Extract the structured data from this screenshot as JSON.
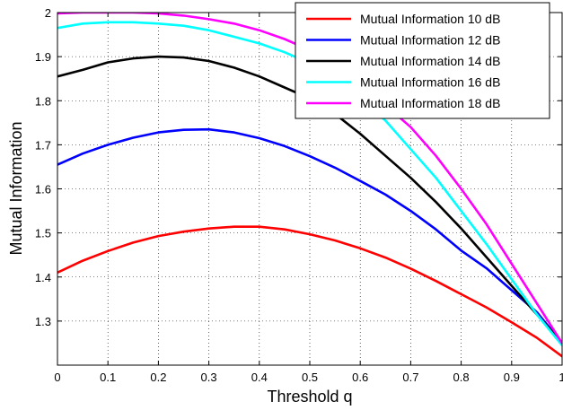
{
  "chart_data": {
    "type": "line",
    "title": "",
    "xlabel": "Threshold q",
    "ylabel": "Mutual Information",
    "xlim": [
      0,
      1
    ],
    "ylim": [
      1.2,
      2.0
    ],
    "xticks": [
      0,
      0.1,
      0.2,
      0.3,
      0.4,
      0.5,
      0.6,
      0.7,
      0.8,
      0.9,
      1
    ],
    "xtick_labels": [
      "0",
      "0.1",
      "0.2",
      "0.3",
      "0.4",
      "0.5",
      "0.6",
      "0.7",
      "0.8",
      "0.9",
      "1"
    ],
    "yticks": [
      1.3,
      1.4,
      1.5,
      1.6,
      1.7,
      1.8,
      1.9,
      2
    ],
    "ytick_labels": [
      "1.3",
      "1.4",
      "1.5",
      "1.6",
      "1.7",
      "1.8",
      "1.9",
      "2"
    ],
    "grid": true,
    "legend_position": "top-right",
    "x": [
      0,
      0.05,
      0.1,
      0.15,
      0.2,
      0.25,
      0.3,
      0.35,
      0.4,
      0.45,
      0.5,
      0.55,
      0.6,
      0.65,
      0.7,
      0.75,
      0.8,
      0.85,
      0.9,
      0.95,
      1
    ],
    "series": [
      {
        "name": "Mutual Information 10 dB",
        "color": "#ff0000",
        "values": [
          1.41,
          1.437,
          1.459,
          1.478,
          1.493,
          1.503,
          1.51,
          1.514,
          1.514,
          1.508,
          1.497,
          1.483,
          1.465,
          1.444,
          1.419,
          1.391,
          1.361,
          1.331,
          1.297,
          1.262,
          1.22
        ]
      },
      {
        "name": "Mutual Information 12 dB",
        "color": "#0000ff",
        "values": [
          1.655,
          1.68,
          1.7,
          1.716,
          1.728,
          1.734,
          1.735,
          1.728,
          1.715,
          1.697,
          1.674,
          1.648,
          1.618,
          1.587,
          1.55,
          1.508,
          1.46,
          1.42,
          1.37,
          1.32,
          1.25
        ]
      },
      {
        "name": "Mutual Information 14 dB",
        "color": "#000000",
        "values": [
          1.855,
          1.87,
          1.887,
          1.896,
          1.9,
          1.898,
          1.89,
          1.875,
          1.855,
          1.83,
          1.805,
          1.77,
          1.725,
          1.675,
          1.625,
          1.57,
          1.51,
          1.445,
          1.38,
          1.315,
          1.25
        ]
      },
      {
        "name": "Mutual Information 16 dB",
        "color": "#00ffff",
        "values": [
          1.965,
          1.975,
          1.978,
          1.978,
          1.975,
          1.97,
          1.96,
          1.945,
          1.93,
          1.91,
          1.885,
          1.85,
          1.805,
          1.755,
          1.69,
          1.625,
          1.55,
          1.475,
          1.395,
          1.315,
          1.245
        ]
      },
      {
        "name": "Mutual Information 18 dB",
        "color": "#ff00ff",
        "values": [
          1.998,
          2.0,
          2.0,
          2.0,
          1.998,
          1.993,
          1.985,
          1.975,
          1.96,
          1.94,
          1.915,
          1.88,
          1.84,
          1.79,
          1.74,
          1.675,
          1.6,
          1.52,
          1.43,
          1.34,
          1.25
        ]
      }
    ]
  }
}
